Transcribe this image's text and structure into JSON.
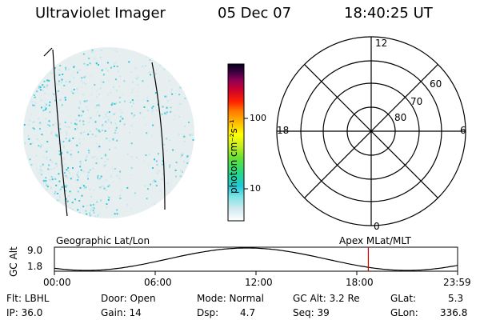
{
  "header": {
    "title": "Ultraviolet Imager",
    "date": "05 Dec 07",
    "time": "18:40:25 UT"
  },
  "colorbar": {
    "unit_label": "photon cm⁻²s⁻¹",
    "scale": "log",
    "ticks": [
      "100",
      "10"
    ]
  },
  "polar": {
    "mlt_labels": [
      "12",
      "18",
      "6",
      "0"
    ],
    "lat_labels": [
      "60",
      "70",
      "80"
    ]
  },
  "labels": {
    "left_panel": "Geographic Lat/Lon",
    "right_panel": "Apex MLat/MLT"
  },
  "orbit": {
    "axis_label": "GC Alt",
    "y_ticks": [
      "9.0",
      "1.8"
    ],
    "x_ticks": [
      "00:00",
      "06:00",
      "12:00",
      "18:00",
      "23:59"
    ],
    "current_time_marker_color": "#e00000"
  },
  "info": {
    "filter": "Flt: LBHL",
    "ip": "IP: 36.0",
    "door": "Door: Open",
    "gain": "Gain: 14",
    "mode": "Mode: Normal",
    "dsp_label": "Dsp:",
    "dsp_value": "4.7",
    "gc_alt": "GC Alt: 3.2 Re",
    "seq": "Seq: 39",
    "glat_label": "GLat:",
    "glat_value": "5.3",
    "glon_label": "GLon:",
    "glon_value": "336.8"
  }
}
